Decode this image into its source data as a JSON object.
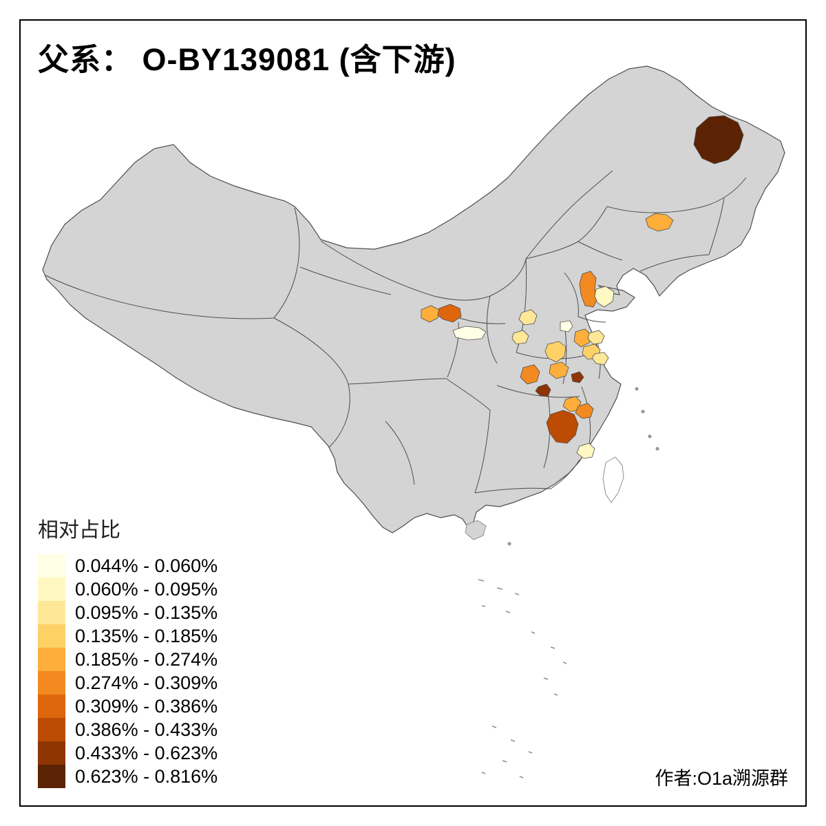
{
  "title": "父系： O-BY139081 (含下游)",
  "attribution": "作者:O1a溯源群",
  "legend": {
    "title": "相对占比",
    "classes": [
      {
        "label": "0.044% - 0.060%",
        "color": "#FFFFE5"
      },
      {
        "label": "0.060% - 0.095%",
        "color": "#FFF8C2"
      },
      {
        "label": "0.095% - 0.135%",
        "color": "#FEE797"
      },
      {
        "label": "0.135% - 0.185%",
        "color": "#FED167"
      },
      {
        "label": "0.185% - 0.274%",
        "color": "#FDAE3B"
      },
      {
        "label": "0.274% - 0.309%",
        "color": "#F28A21"
      },
      {
        "label": "0.309% - 0.386%",
        "color": "#DE660C"
      },
      {
        "label": "0.386% - 0.433%",
        "color": "#BC4B04"
      },
      {
        "label": "0.433% - 0.623%",
        "color": "#8E3504"
      },
      {
        "label": "0.623% - 0.816%",
        "color": "#5C2204"
      }
    ]
  },
  "map": {
    "land_color": "#d4d4d4",
    "border_color": "#4d4d4d",
    "sea_color": "#ffffff",
    "regions": [
      {
        "id": "region-1",
        "class_index": 9
      },
      {
        "id": "region-2",
        "class_index": 4
      },
      {
        "id": "region-3",
        "class_index": 5
      },
      {
        "id": "region-4",
        "class_index": 1
      },
      {
        "id": "region-5",
        "class_index": 4
      },
      {
        "id": "region-6",
        "class_index": 6
      },
      {
        "id": "region-7",
        "class_index": 0
      },
      {
        "id": "region-8",
        "class_index": 2
      },
      {
        "id": "region-9",
        "class_index": 2
      },
      {
        "id": "region-10",
        "class_index": 0
      },
      {
        "id": "region-11",
        "class_index": 3
      },
      {
        "id": "region-12",
        "class_index": 4
      },
      {
        "id": "region-13",
        "class_index": 2
      },
      {
        "id": "region-14",
        "class_index": 3
      },
      {
        "id": "region-15",
        "class_index": 2
      },
      {
        "id": "region-16",
        "class_index": 5
      },
      {
        "id": "region-17",
        "class_index": 4
      },
      {
        "id": "region-18",
        "class_index": 8
      },
      {
        "id": "region-19",
        "class_index": 8
      },
      {
        "id": "region-20",
        "class_index": 4
      },
      {
        "id": "region-21",
        "class_index": 5
      },
      {
        "id": "region-22",
        "class_index": 7
      },
      {
        "id": "region-23",
        "class_index": 1
      }
    ]
  }
}
